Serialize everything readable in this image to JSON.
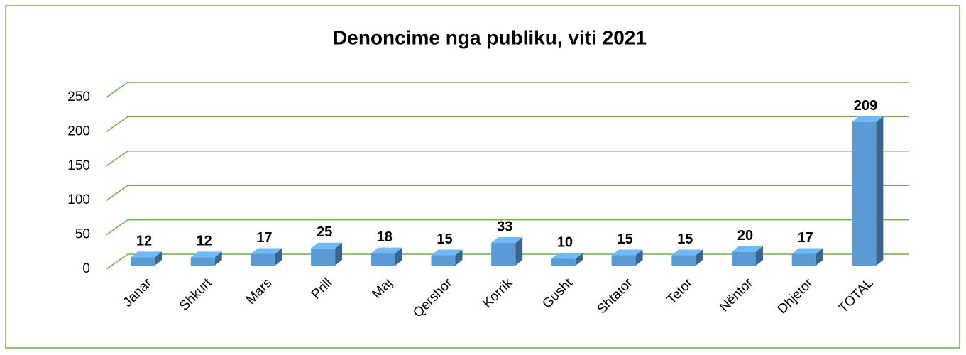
{
  "chart_data": {
    "type": "bar3d",
    "title": "Denoncime nga publiku, viti 2021",
    "categories": [
      "Janar",
      "Shkurt",
      "Mars",
      "Prill",
      "Maj",
      "Qershor",
      "Korrik",
      "Gusht",
      "Shtator",
      "Tetor",
      "Nëntor",
      "Dhjetor",
      "TOTAL"
    ],
    "values": [
      12,
      12,
      17,
      25,
      18,
      15,
      33,
      10,
      15,
      15,
      20,
      17,
      209
    ],
    "color": "#5b9bd5",
    "ylim": [
      0,
      250
    ],
    "yticks": [
      0,
      50,
      100,
      150,
      200,
      250
    ],
    "grid": true
  }
}
